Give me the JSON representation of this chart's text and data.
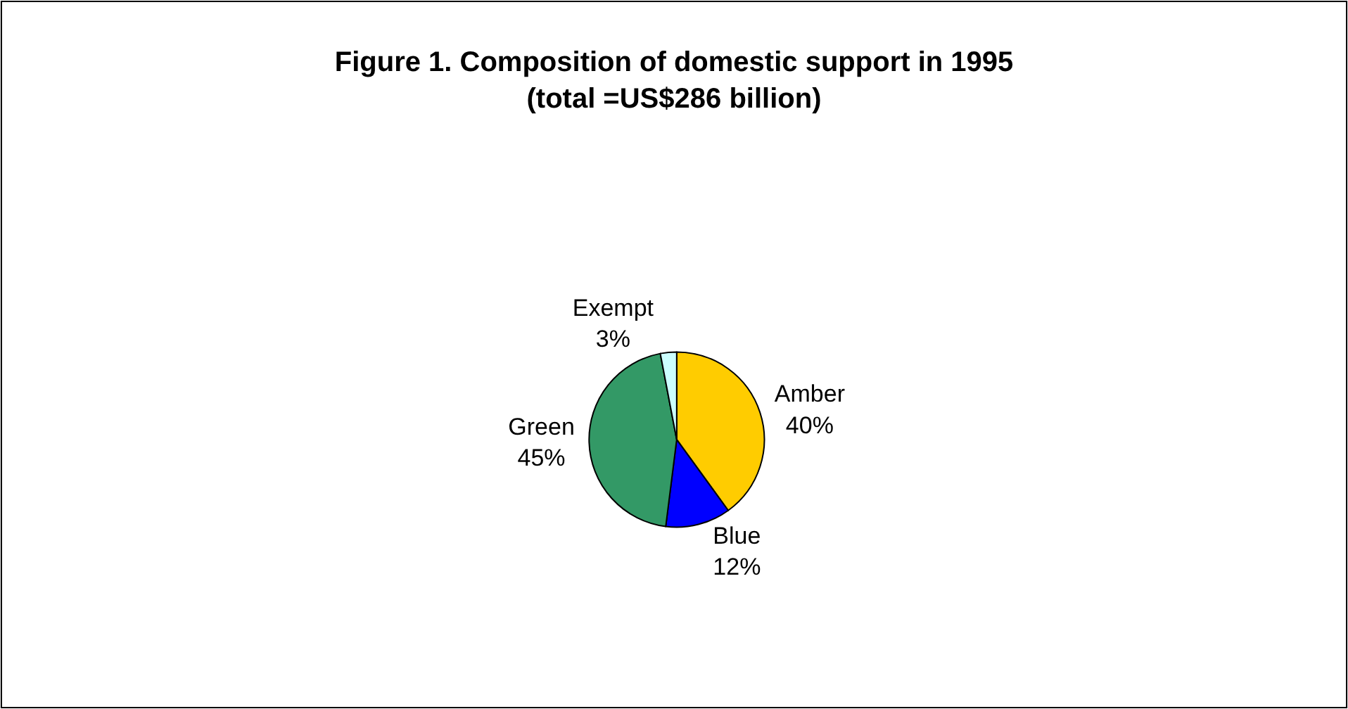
{
  "chart_data": {
    "type": "pie",
    "title": "Figure 1. Composition of domestic support in 1995\n(total =US$286 billion)",
    "categories": [
      "Amber",
      "Blue",
      "Green",
      "Exempt"
    ],
    "values": [
      40,
      12,
      45,
      3
    ],
    "value_labels": [
      "40%",
      "12%",
      "45%",
      "3%"
    ],
    "colors": [
      "#ffcc00",
      "#0000ff",
      "#339966",
      "#ccffff"
    ],
    "legend": false
  }
}
